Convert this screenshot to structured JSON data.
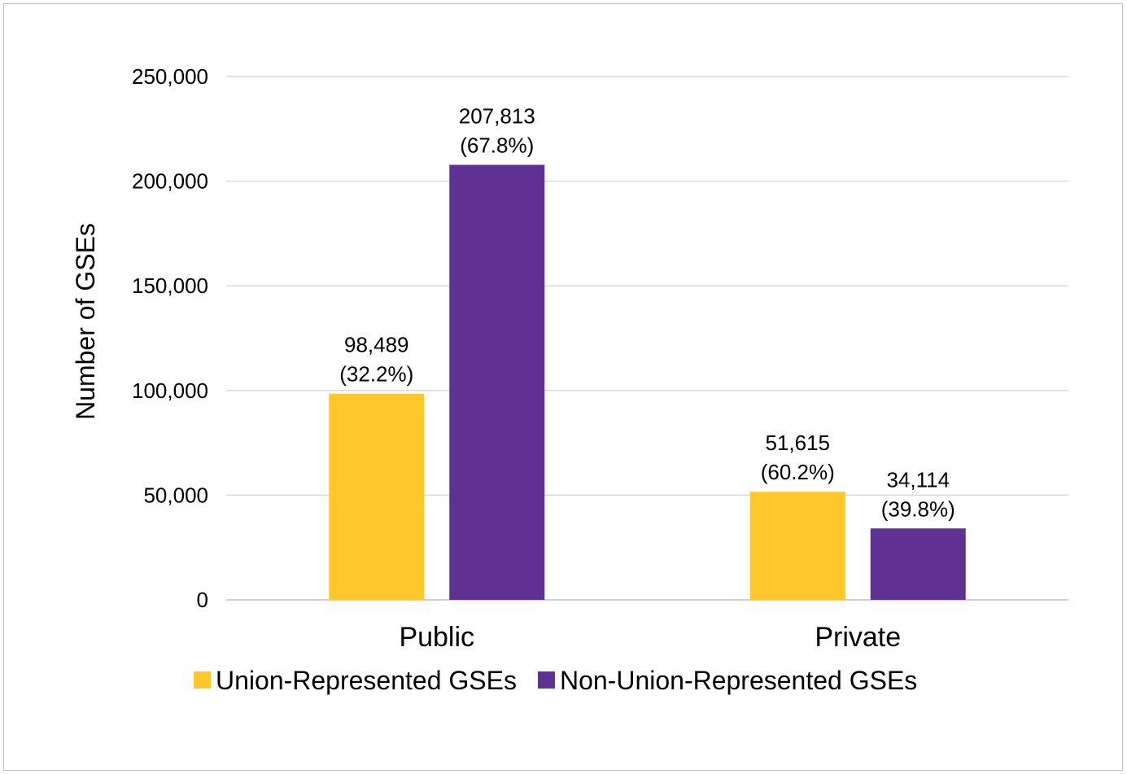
{
  "chart_data": {
    "type": "bar",
    "title": "",
    "xlabel": "",
    "ylabel": "Number of  GSEs",
    "ylim": [
      0,
      250000
    ],
    "yticks": [
      0,
      50000,
      100000,
      150000,
      200000,
      250000
    ],
    "ytick_labels": [
      "0",
      "50,000",
      "100,000",
      "150,000",
      "200,000",
      "250,000"
    ],
    "grid": true,
    "legend_position": "bottom",
    "categories": [
      "Public",
      "Private"
    ],
    "series": [
      {
        "name": "Union-Represented GSEs",
        "color": "#FFC72C",
        "values": [
          98489,
          51615
        ],
        "labels": [
          [
            "98,489",
            "(32.2%)"
          ],
          [
            "51,615",
            "(60.2%)"
          ]
        ]
      },
      {
        "name": "Non-Union-Represented GSEs",
        "color": "#5F3192",
        "values": [
          207813,
          34114
        ],
        "labels": [
          [
            "207,813",
            "(67.8%)"
          ],
          [
            "34,114",
            "(39.8%)"
          ]
        ]
      }
    ]
  }
}
